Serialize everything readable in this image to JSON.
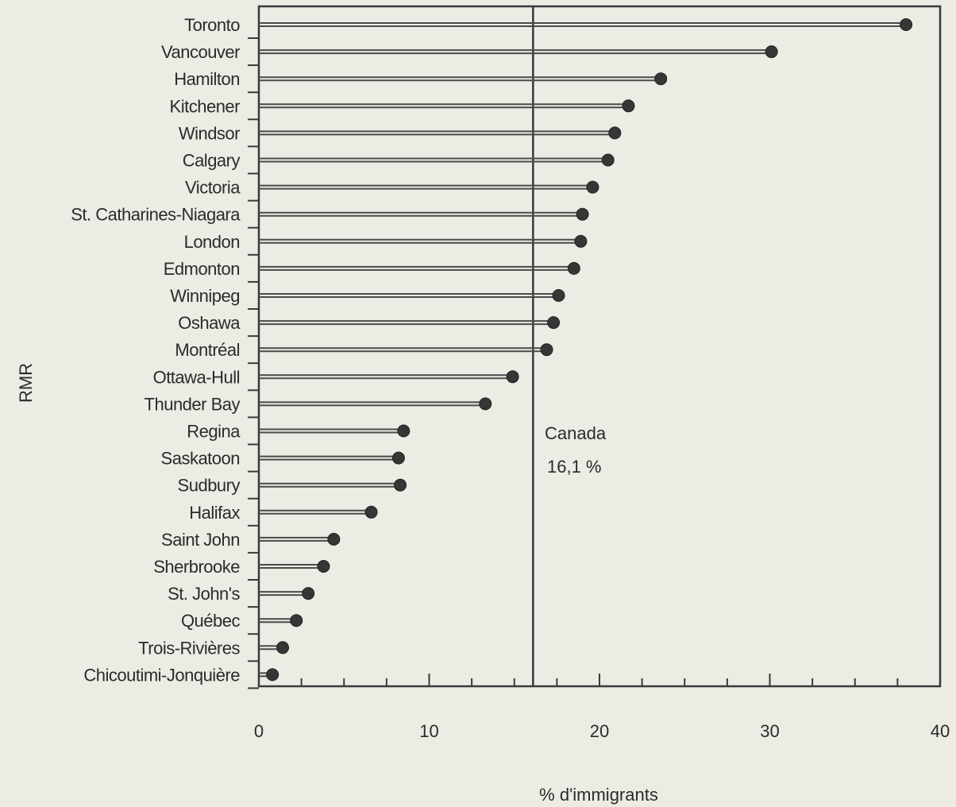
{
  "chart_data": {
    "type": "lollipop",
    "xlabel": "% d'immigrants",
    "ylabel": "RMR",
    "xlim": [
      0,
      40
    ],
    "xticks": [
      0,
      10,
      20,
      30,
      40
    ],
    "grid": false,
    "categories": [
      "Toronto",
      "Vancouver",
      "Hamilton",
      "Kitchener",
      "Windsor",
      "Calgary",
      "Victoria",
      "St. Catharines-Niagara",
      "London",
      "Edmonton",
      "Winnipeg",
      "Oshawa",
      "Montréal",
      "Ottawa-Hull",
      "Thunder Bay",
      "Regina",
      "Saskatoon",
      "Sudbury",
      "Halifax",
      "Saint John",
      "Sherbrooke",
      "St. John's",
      "Québec",
      "Trois-Rivières",
      "Chicoutimi-Jonquière"
    ],
    "values": [
      38.0,
      30.1,
      23.6,
      21.7,
      20.9,
      20.5,
      19.6,
      19.0,
      18.9,
      18.5,
      17.6,
      17.3,
      16.9,
      14.9,
      13.3,
      8.5,
      8.2,
      8.3,
      6.6,
      4.4,
      3.8,
      2.9,
      2.2,
      1.4,
      0.8
    ],
    "reference_line": {
      "value": 16.1,
      "label": "Canada",
      "value_label": "16,1 %"
    }
  }
}
